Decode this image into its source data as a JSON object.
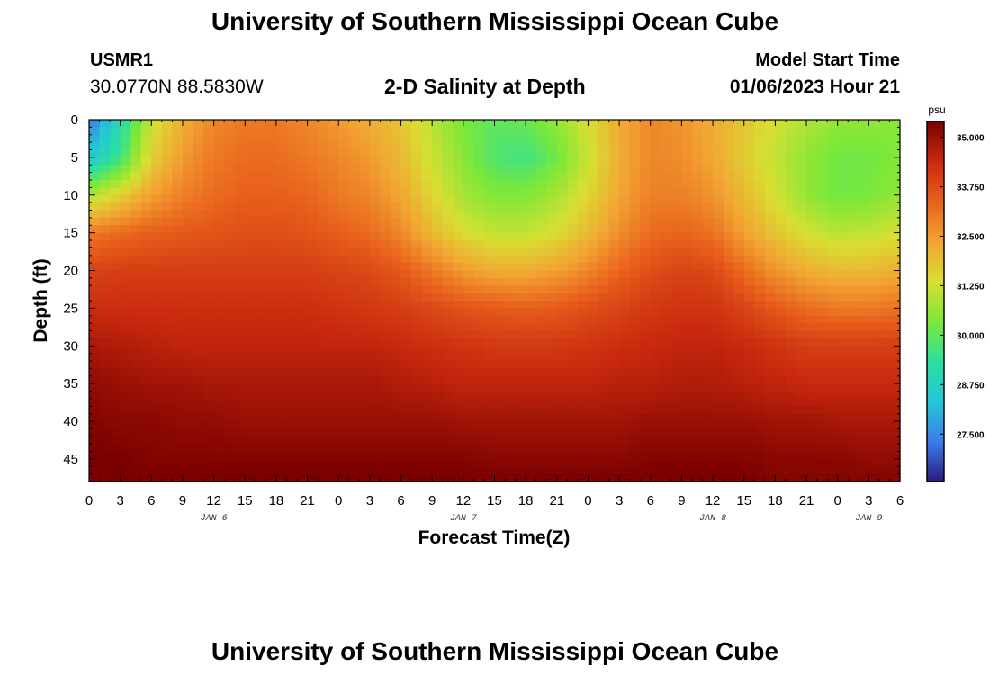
{
  "page": {
    "title": "University of Southern Mississippi Ocean Cube",
    "footer_title": "University of Southern Mississippi Ocean Cube",
    "station_id": "USMR1",
    "station_coords": "30.0770N  88.5830W",
    "plot_title": "2-D Salinity at Depth",
    "model_start_label": "Model Start Time",
    "model_start_time": "01/06/2023 Hour 21"
  },
  "chart_data": {
    "type": "heatmap",
    "title": "2-D Salinity at Depth",
    "xlabel": "Forecast Time(Z)",
    "ylabel": "Depth (ft)",
    "colorbar_unit": "psu",
    "x_range_hours": [
      0,
      78
    ],
    "y_range_ft": [
      0,
      48
    ],
    "x_ticks": [
      "0",
      "3",
      "6",
      "9",
      "12",
      "15",
      "18",
      "21",
      "0",
      "3",
      "6",
      "9",
      "12",
      "15",
      "18",
      "21",
      "0",
      "3",
      "6",
      "9",
      "12",
      "15",
      "18",
      "21",
      "0",
      "3",
      "6"
    ],
    "date_labels": [
      {
        "label": "JAN 6",
        "hour": 12
      },
      {
        "label": "JAN 7",
        "hour": 36
      },
      {
        "label": "JAN 8",
        "hour": 60
      },
      {
        "label": "JAN 9",
        "hour": 75
      }
    ],
    "y_ticks": [
      0,
      5,
      10,
      15,
      20,
      25,
      30,
      35,
      40,
      45
    ],
    "colorbar_ticks": [
      "35.000",
      "33.750",
      "32.500",
      "31.250",
      "30.000",
      "28.750",
      "27.500"
    ],
    "colorbar_range": [
      26.3,
      35.4
    ],
    "colors": {
      "stops": [
        "#2a1a80",
        "#3a7de8",
        "#23c7d6",
        "#2be0a0",
        "#7ce838",
        "#d8df32",
        "#f2a432",
        "#e8601c",
        "#c9290e",
        "#7a0000"
      ]
    },
    "salinity_field": {
      "hours": [
        0,
        3,
        6,
        9,
        12,
        15,
        18,
        21,
        24,
        27,
        30,
        33,
        36,
        39,
        42,
        45,
        48,
        51,
        54,
        57,
        60,
        63,
        66,
        69,
        72,
        75,
        78
      ],
      "depths_ft": [
        0,
        5,
        10,
        15,
        20,
        25,
        30,
        35,
        40,
        45,
        48
      ],
      "values": [
        [
          27.2,
          29.0,
          31.2,
          32.2,
          32.8,
          33.0,
          33.0,
          32.8,
          32.5,
          32.2,
          31.8,
          31.0,
          30.3,
          30.0,
          30.1,
          30.6,
          31.4,
          32.2,
          32.8,
          32.6,
          32.2,
          31.8,
          31.3,
          30.9,
          30.6,
          30.6,
          30.5
        ],
        [
          28.4,
          29.6,
          31.6,
          32.5,
          33.0,
          33.2,
          33.2,
          33.0,
          32.8,
          32.5,
          32.0,
          31.2,
          30.5,
          29.8,
          29.6,
          30.2,
          31.2,
          32.2,
          32.8,
          32.7,
          32.3,
          31.7,
          31.1,
          30.6,
          30.2,
          30.2,
          30.4
        ],
        [
          30.9,
          31.6,
          32.4,
          32.9,
          33.2,
          33.4,
          33.4,
          33.3,
          33.0,
          32.8,
          32.3,
          31.5,
          30.8,
          30.4,
          30.4,
          30.8,
          31.5,
          32.3,
          32.9,
          32.9,
          32.6,
          32.0,
          31.3,
          30.6,
          30.2,
          30.3,
          30.6
        ],
        [
          33.0,
          33.2,
          33.4,
          33.5,
          33.6,
          33.7,
          33.7,
          33.6,
          33.4,
          33.2,
          32.8,
          32.0,
          31.4,
          31.1,
          31.1,
          31.4,
          32.0,
          32.7,
          33.2,
          33.3,
          33.1,
          32.4,
          31.8,
          31.3,
          31.0,
          31.1,
          31.3
        ],
        [
          33.9,
          34.0,
          34.0,
          34.0,
          34.0,
          34.0,
          34.0,
          34.0,
          33.9,
          33.8,
          33.5,
          33.0,
          32.5,
          32.2,
          32.2,
          32.4,
          32.8,
          33.3,
          33.7,
          33.9,
          33.8,
          33.2,
          32.6,
          32.2,
          32.0,
          32.0,
          32.2
        ],
        [
          34.3,
          34.3,
          34.3,
          34.3,
          34.3,
          34.3,
          34.3,
          34.3,
          34.2,
          34.1,
          34.0,
          33.8,
          33.6,
          33.5,
          33.4,
          33.5,
          33.7,
          33.9,
          34.1,
          34.2,
          34.2,
          33.9,
          33.5,
          33.2,
          33.0,
          33.0,
          33.1
        ],
        [
          34.8,
          34.7,
          34.6,
          34.5,
          34.5,
          34.5,
          34.5,
          34.5,
          34.5,
          34.5,
          34.4,
          34.3,
          34.2,
          34.1,
          34.1,
          34.1,
          34.2,
          34.3,
          34.4,
          34.5,
          34.5,
          34.4,
          34.2,
          34.0,
          34.0,
          34.0,
          34.0
        ],
        [
          35.1,
          35.0,
          34.9,
          34.9,
          34.8,
          34.8,
          34.8,
          34.8,
          34.8,
          34.8,
          34.7,
          34.6,
          34.5,
          34.5,
          34.5,
          34.5,
          34.5,
          34.6,
          34.6,
          34.7,
          34.7,
          34.6,
          34.5,
          34.4,
          34.4,
          34.4,
          34.4
        ],
        [
          35.3,
          35.2,
          35.2,
          35.1,
          35.1,
          35.0,
          35.0,
          35.0,
          35.0,
          35.0,
          35.0,
          35.0,
          34.9,
          34.9,
          34.9,
          34.9,
          34.9,
          34.9,
          35.0,
          35.0,
          35.0,
          35.0,
          34.9,
          34.9,
          34.8,
          34.8,
          34.8
        ],
        [
          35.4,
          35.4,
          35.3,
          35.3,
          35.3,
          35.3,
          35.3,
          35.3,
          35.3,
          35.3,
          35.3,
          35.3,
          35.3,
          35.2,
          35.2,
          35.2,
          35.2,
          35.2,
          35.3,
          35.3,
          35.3,
          35.3,
          35.2,
          35.2,
          35.2,
          35.1,
          35.1
        ],
        [
          35.4,
          35.4,
          35.4,
          35.4,
          35.4,
          35.4,
          35.4,
          35.4,
          35.4,
          35.4,
          35.4,
          35.4,
          35.4,
          35.4,
          35.4,
          35.4,
          35.4,
          35.4,
          35.4,
          35.4,
          35.4,
          35.4,
          35.3,
          35.3,
          35.3,
          35.3,
          35.3
        ]
      ]
    }
  }
}
